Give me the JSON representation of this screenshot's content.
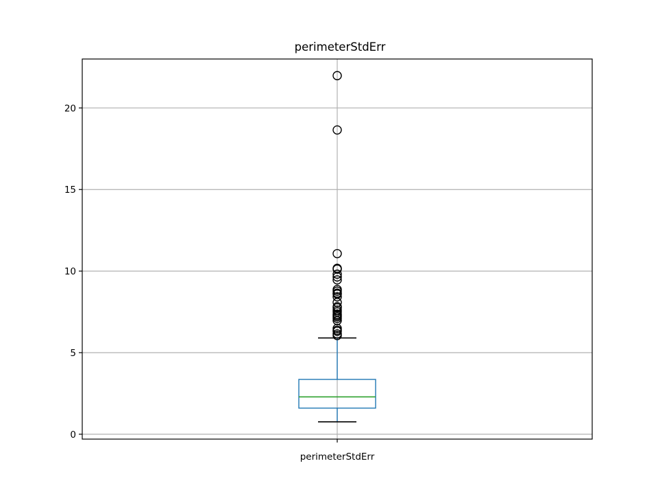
{
  "chart_data": {
    "type": "box",
    "title": "perimeterStdErr",
    "xlabel": "",
    "ylabel": "",
    "categories": [
      "perimeterStdErr"
    ],
    "ylim": [
      -0.3,
      23.0
    ],
    "yticks": [
      0,
      5,
      10,
      15,
      20
    ],
    "grid": true,
    "boxes": [
      {
        "category": "perimeterStdErr",
        "whisker_low": 0.76,
        "q1": 1.6,
        "median": 2.29,
        "q3": 3.36,
        "whisker_high": 5.9,
        "outliers": [
          21.98,
          18.65,
          11.07,
          10.17,
          10.12,
          9.81,
          9.64,
          9.46,
          8.87,
          8.77,
          8.65,
          8.59,
          8.42,
          8.08,
          7.82,
          7.75,
          7.6,
          7.5,
          7.36,
          7.28,
          7.2,
          7.1,
          6.97,
          6.49,
          6.38,
          6.31,
          6.15,
          6.05
        ]
      }
    ],
    "colors": {
      "box": "#1f77b4",
      "median": "#2ca02c",
      "whisker_cap": "#000000",
      "outlier_edge": "#000000"
    }
  }
}
